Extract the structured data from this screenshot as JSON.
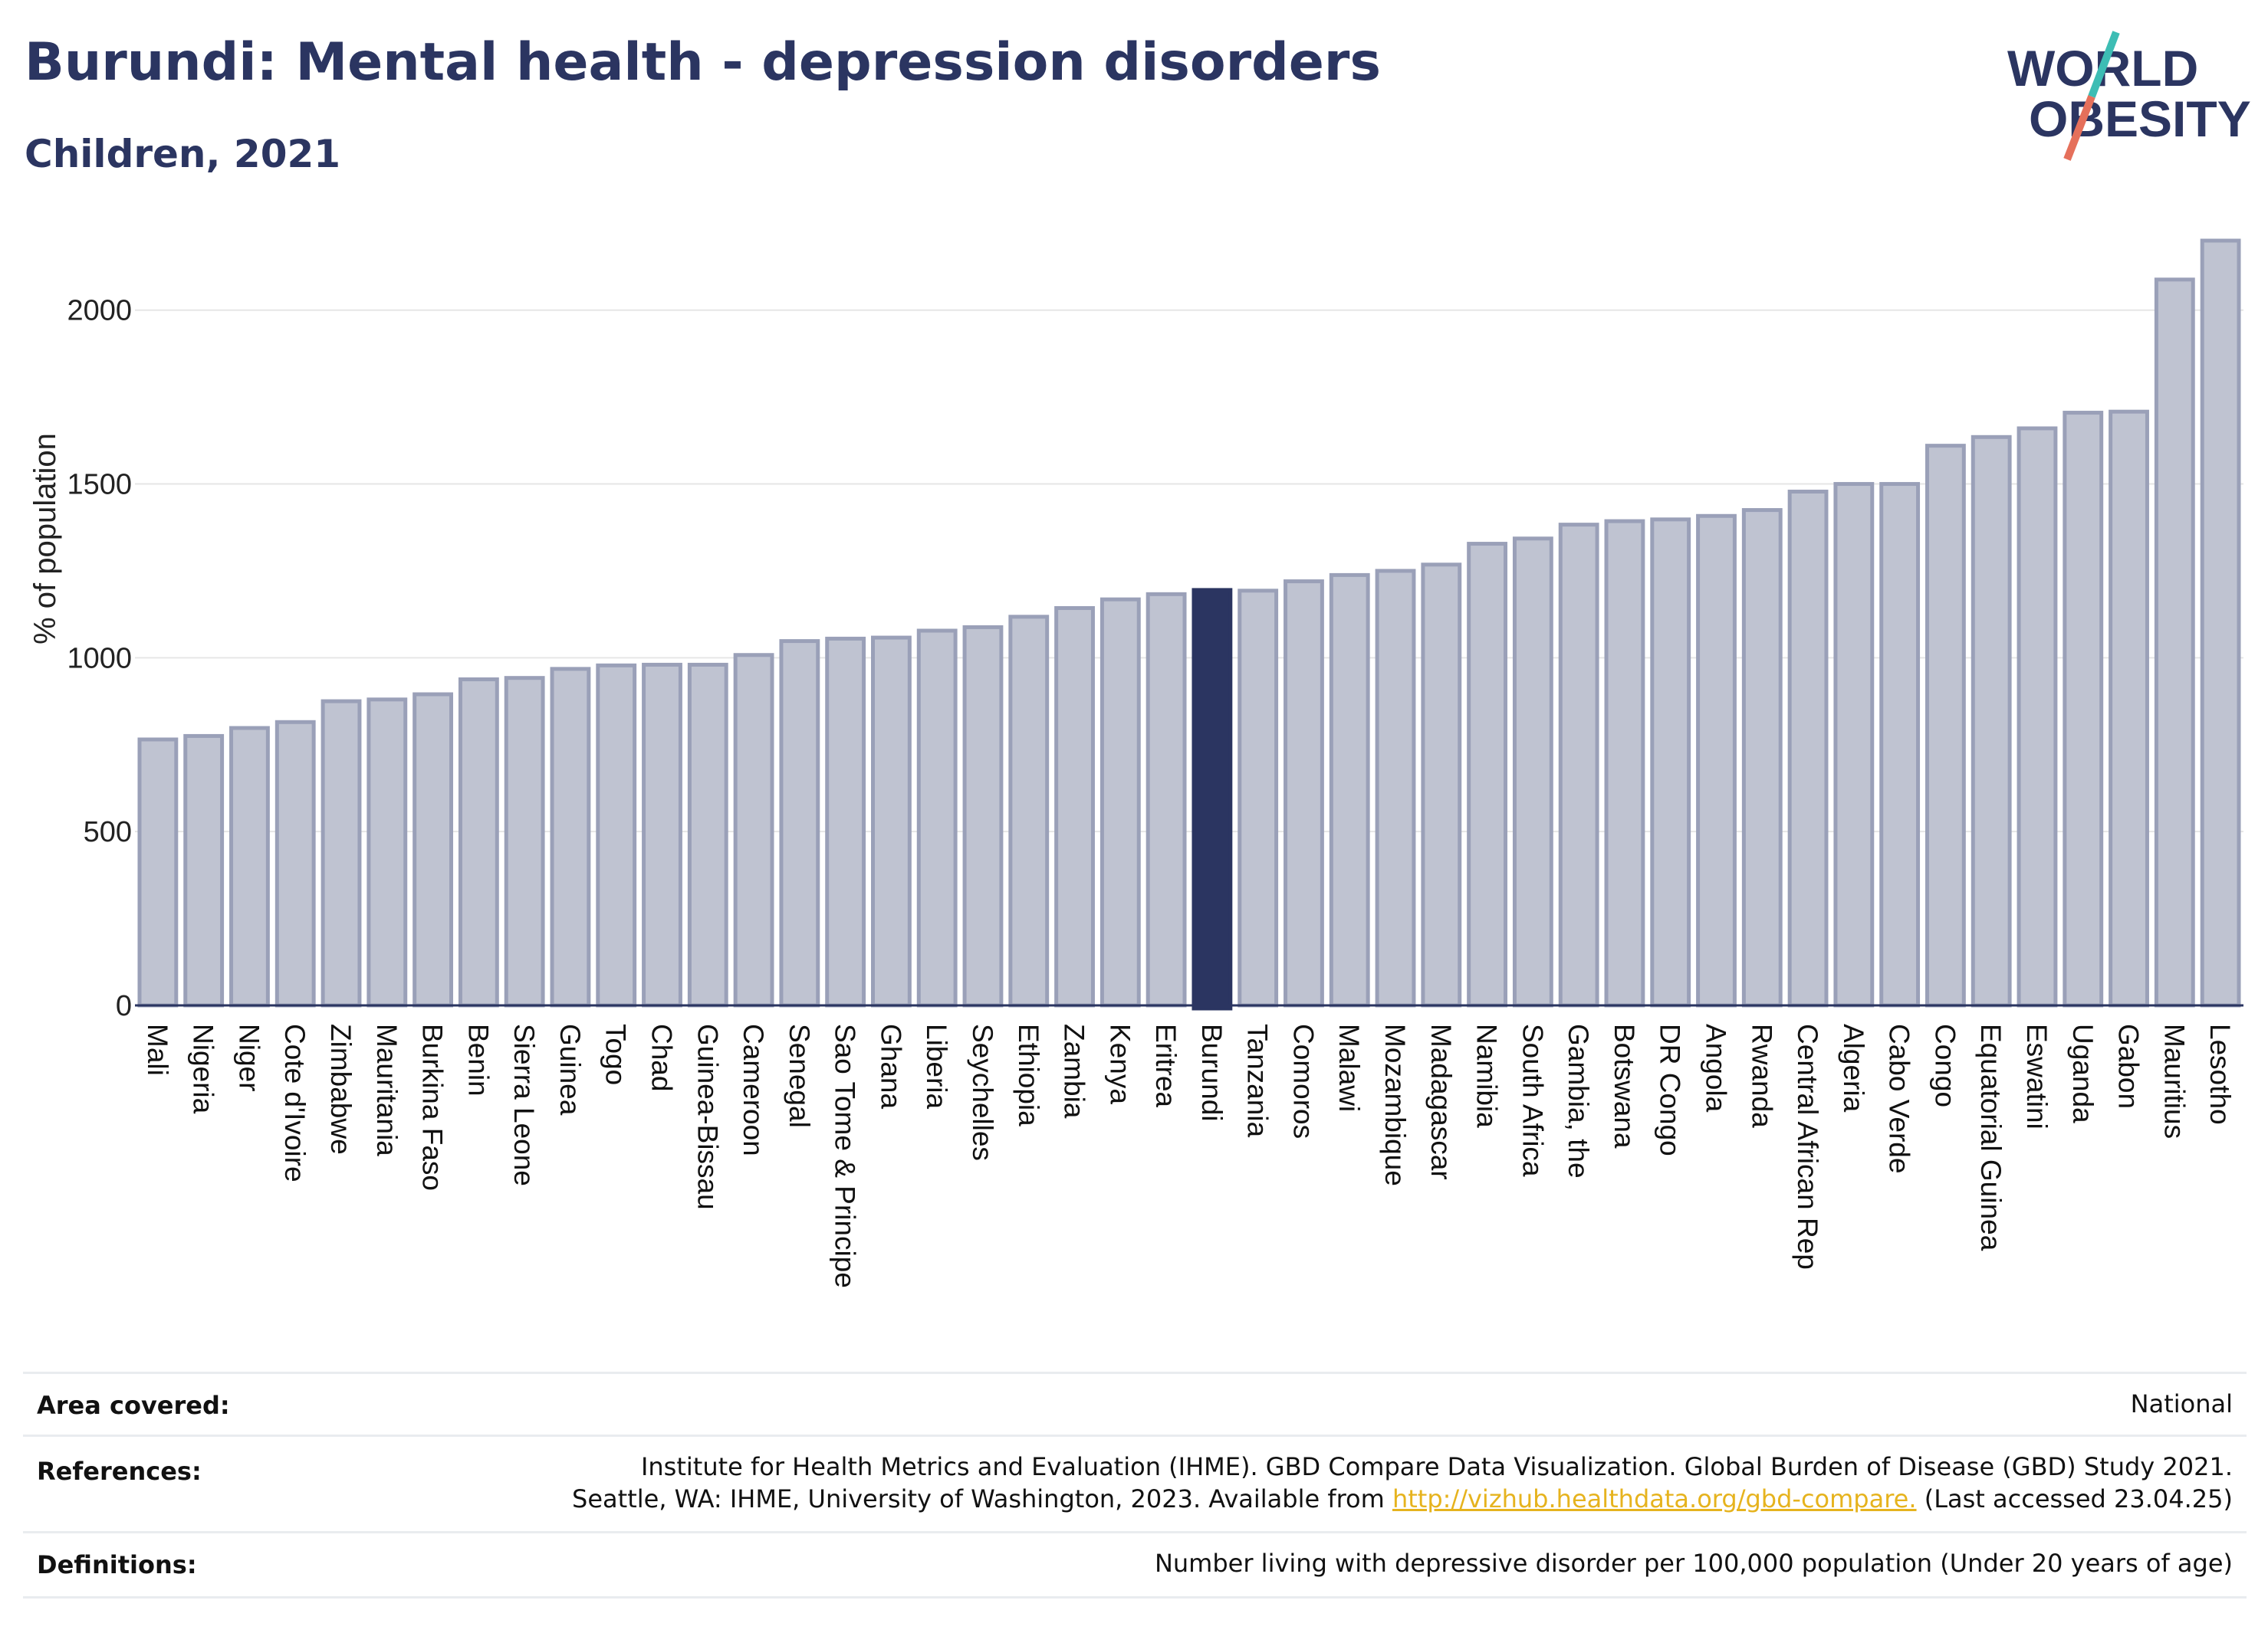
{
  "header": {
    "title": "Burundi: Mental health - depression disorders",
    "subtitle": "Children, 2021"
  },
  "logo": {
    "line1": "WORLD",
    "line2": "OBESITY"
  },
  "chart_data": {
    "type": "bar",
    "title": "Burundi: Mental health - depression disorders",
    "subtitle": "Children, 2021",
    "xlabel": "",
    "ylabel": "% of population",
    "ylim": [
      0,
      2200
    ],
    "yticks": [
      0,
      500,
      1000,
      1500,
      2000
    ],
    "grid": true,
    "highlight": "Burundi",
    "colors": {
      "bar": "#bfc3d1",
      "bar_stroke": "#9aa0b8",
      "highlight": "#2b3561"
    },
    "categories": [
      "Mali",
      "Nigeria",
      "Niger",
      "Cote d'Ivoire",
      "Zimbabwe",
      "Mauritania",
      "Burkina Faso",
      "Benin",
      "Sierra Leone",
      "Guinea",
      "Togo",
      "Chad",
      "Guinea-Bissau",
      "Cameroon",
      "Senegal",
      "Sao Tome & Principe",
      "Ghana",
      "Liberia",
      "Seychelles",
      "Ethiopia",
      "Zambia",
      "Kenya",
      "Eritrea",
      "Burundi",
      "Tanzania",
      "Comoros",
      "Malawi",
      "Mozambique",
      "Madagascar",
      "Namibia",
      "South Africa",
      "Gambia, the",
      "Botswana",
      "DR Congo",
      "Angola",
      "Rwanda",
      "Central African Rep",
      "Algeria",
      "Cabo Verde",
      "Congo",
      "Equatorial Guinea",
      "Eswatini",
      "Uganda",
      "Gabon",
      "Mauritius",
      "Lesotho"
    ],
    "values": [
      765,
      775,
      798,
      815,
      875,
      880,
      895,
      938,
      942,
      968,
      978,
      980,
      980,
      1008,
      1048,
      1055,
      1058,
      1078,
      1088,
      1118,
      1143,
      1168,
      1183,
      1195,
      1193,
      1220,
      1238,
      1250,
      1268,
      1328,
      1343,
      1383,
      1393,
      1398,
      1408,
      1425,
      1478,
      1500,
      1500,
      1610,
      1635,
      1660,
      1705,
      1708,
      2088,
      2200
    ]
  },
  "info": {
    "area_label": "Area covered:",
    "area_value": "National",
    "references_label": "References:",
    "references_line1": "Institute for Health Metrics and Evaluation (IHME). GBD Compare Data Visualization. Global Burden of Disease (GBD) Study 2021.",
    "references_line2_pre": "Seattle, WA: IHME, University of Washington, 2023. Available from ",
    "references_link": "http://vizhub.healthdata.org/gbd-compare.",
    "references_line2_post": " (Last accessed 23.04.25)",
    "definitions_label": "Definitions:",
    "definitions_value": "Number living with depressive disorder per 100,000 population (Under 20 years of age)"
  }
}
